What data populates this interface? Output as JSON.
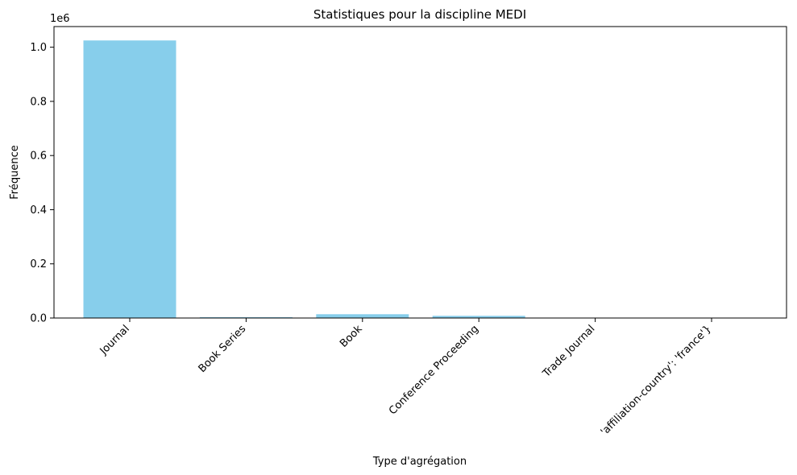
{
  "chart_data": {
    "type": "bar",
    "title": "Statistiques pour la discipline MEDI",
    "xlabel": "Type d'agrégation",
    "ylabel": "Fréquence",
    "y_offset_label": "1e6",
    "categories": [
      "Journal",
      "Book Series",
      "Book",
      "Conference Proceeding",
      "Trade Journal",
      "'affiliation-country': 'france'}"
    ],
    "values": [
      1025000,
      3000,
      14000,
      8000,
      300,
      100
    ],
    "ylim": [
      0,
      1076250
    ],
    "yticks": [
      0,
      200000,
      400000,
      600000,
      800000,
      1000000
    ],
    "ytick_labels": [
      "0.0",
      "0.2",
      "0.4",
      "0.6",
      "0.8",
      "1.0"
    ],
    "bar_color": "#87CEEB",
    "grid": false,
    "legend": "none"
  }
}
